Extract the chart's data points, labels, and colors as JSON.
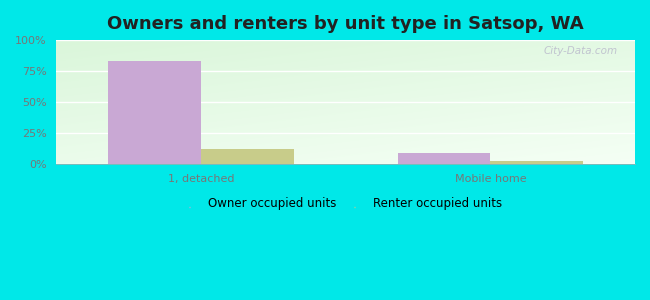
{
  "title": "Owners and renters by unit type in Satsop, WA",
  "categories": [
    "1, detached",
    "Mobile home"
  ],
  "owner_values": [
    83,
    9
  ],
  "renter_values": [
    12,
    2
  ],
  "owner_color": "#c9a8d4",
  "renter_color": "#c8cc8a",
  "outer_background": "#00e8e8",
  "ylim": [
    0,
    100
  ],
  "yticks": [
    0,
    25,
    50,
    75,
    100
  ],
  "ytick_labels": [
    "0%",
    "25%",
    "50%",
    "75%",
    "100%"
  ],
  "bar_width": 0.32,
  "legend_labels": [
    "Owner occupied units",
    "Renter occupied units"
  ],
  "watermark": "City-Data.com",
  "title_fontsize": 13,
  "tick_fontsize": 8,
  "legend_fontsize": 8.5
}
